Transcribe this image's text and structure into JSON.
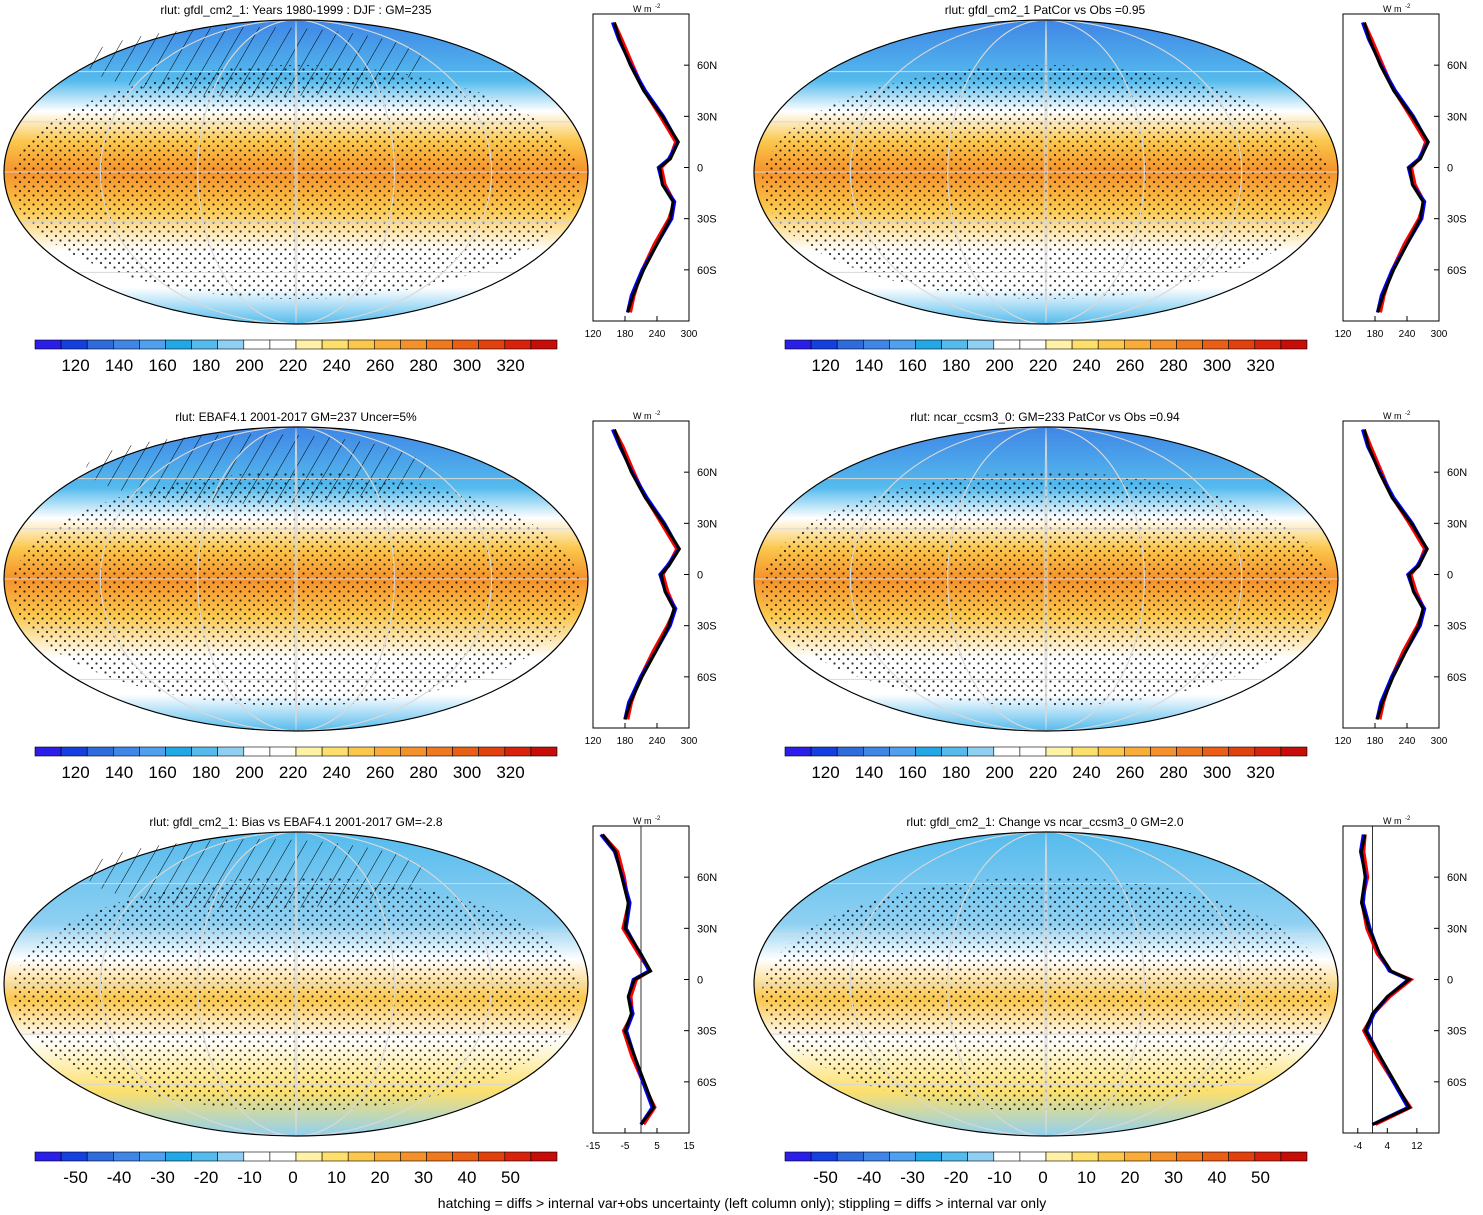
{
  "footer": "hatching = diffs > internal var+obs uncertainty (left column only); stippling = diffs > internal var only",
  "colors": {
    "abs_scale": [
      "#2b1ee8",
      "#1540e0",
      "#2f6bdc",
      "#3f86e6",
      "#4fa0ee",
      "#22a8e6",
      "#55bbed",
      "#8fd0f2",
      "#ffffff",
      "#ffffff",
      "#fff2a8",
      "#fde06c",
      "#fbc74c",
      "#f9ad38",
      "#f5912a",
      "#f0781e",
      "#ea5e16",
      "#e34010",
      "#d8220c",
      "#c80c08"
    ],
    "diff_scale": [
      "#2b1ee8",
      "#1540e0",
      "#2f6bdc",
      "#3f86e6",
      "#4fa0ee",
      "#22a8e6",
      "#55bbed",
      "#8fd0f2",
      "#ffffff",
      "#ffffff",
      "#fff2a8",
      "#fde06c",
      "#fbc74c",
      "#f9ad38",
      "#f5912a",
      "#f0781e",
      "#ea5e16",
      "#e34010",
      "#d8220c",
      "#c80c08"
    ],
    "line_model": "#000000",
    "line_obs_red": "#ff0000",
    "line_obs_blue": "#0000ff"
  },
  "panels": [
    {
      "title": "rlut: gfdl_cm2_1: Years 1980-1999 : DJF : GM=235",
      "kind": "abs",
      "hatch": true
    },
    {
      "title": "rlut: gfdl_cm2_1 PatCor vs Obs =0.95",
      "kind": "abs",
      "hatch": false
    },
    {
      "title": "rlut: EBAF4.1 2001-2017 GM=237 Uncer=5%",
      "kind": "abs",
      "hatch": true
    },
    {
      "title": "rlut: ncar_ccsm3_0: GM=233 PatCor vs Obs =0.94",
      "kind": "abs",
      "hatch": false
    },
    {
      "title": "rlut: gfdl_cm2_1: Bias vs EBAF4.1 2001-2017 GM=-2.8",
      "kind": "diff",
      "hatch": true
    },
    {
      "title": "rlut: gfdl_cm2_1: Change vs ncar_ccsm3_0 GM=2.0",
      "kind": "diff",
      "hatch": false
    }
  ],
  "colorbars": {
    "abs_labels": [
      "120",
      "140",
      "160",
      "180",
      "200",
      "220",
      "240",
      "260",
      "280",
      "300",
      "320"
    ],
    "diff_labels": [
      "-50",
      "-40",
      "-30",
      "-20",
      "-10",
      "0",
      "10",
      "20",
      "30",
      "40",
      "50"
    ]
  },
  "profiles": {
    "unit": "W m",
    "lat_labels": [
      "60N",
      "30N",
      "0",
      "30S",
      "60S"
    ],
    "xticks": [
      [
        "120",
        "180",
        "240",
        "300"
      ],
      [
        "120",
        "180",
        "240",
        "300"
      ],
      [
        "120",
        "180",
        "240",
        "300"
      ],
      [
        "120",
        "180",
        "240",
        "300"
      ],
      [
        "-15",
        "-5",
        "5",
        "15"
      ],
      [
        "-4",
        "4",
        "12"
      ]
    ]
  },
  "chart_data": [
    {
      "type": "line",
      "title": "rlut: gfdl_cm2_1: Years 1980-1999 : DJF : GM=235",
      "x_range": [
        120,
        300
      ],
      "y_range": [
        -90,
        90
      ],
      "series": [
        {
          "y": [
            85,
            75,
            60,
            45,
            30,
            15,
            5,
            0,
            -10,
            -20,
            -30,
            -45,
            -60,
            -75,
            -85
          ],
          "x": [
            160,
            170,
            190,
            215,
            250,
            280,
            265,
            245,
            250,
            270,
            265,
            240,
            215,
            195,
            185
          ]
        }
      ]
    },
    {
      "type": "line",
      "title": "rlut: gfdl_cm2_1 PatCor vs Obs =0.95",
      "x_range": [
        120,
        300
      ],
      "y_range": [
        -90,
        90
      ],
      "series": [
        {
          "y": [
            85,
            75,
            60,
            45,
            30,
            15,
            5,
            0,
            -10,
            -20,
            -30,
            -45,
            -60,
            -75,
            -85
          ],
          "x": [
            160,
            170,
            190,
            215,
            250,
            280,
            265,
            245,
            250,
            270,
            265,
            240,
            215,
            195,
            185
          ]
        }
      ]
    },
    {
      "type": "line",
      "title": "rlut: EBAF4.1 2001-2017 GM=237 Uncer=5%",
      "x_range": [
        120,
        300
      ],
      "y_range": [
        -90,
        90
      ],
      "series": [
        {
          "y": [
            85,
            75,
            60,
            45,
            30,
            15,
            5,
            0,
            -10,
            -20,
            -30,
            -45,
            -60,
            -75,
            -85
          ],
          "x": [
            160,
            172,
            192,
            218,
            252,
            282,
            262,
            248,
            255,
            272,
            262,
            238,
            212,
            190,
            180
          ]
        }
      ]
    },
    {
      "type": "line",
      "title": "rlut: ncar_ccsm3_0: GM=233 PatCor vs Obs =0.94",
      "x_range": [
        120,
        300
      ],
      "y_range": [
        -90,
        90
      ],
      "series": [
        {
          "y": [
            85,
            75,
            60,
            45,
            30,
            15,
            5,
            0,
            -10,
            -20,
            -30,
            -45,
            -60,
            -75,
            -85
          ],
          "x": [
            160,
            168,
            188,
            212,
            248,
            278,
            262,
            244,
            252,
            270,
            262,
            238,
            214,
            194,
            184
          ]
        }
      ]
    },
    {
      "type": "line",
      "title": "rlut: gfdl_cm2_1: Bias vs EBAF4.1 2001-2017 GM=-2.8",
      "x_range": [
        -15,
        15
      ],
      "y_range": [
        -90,
        90
      ],
      "series": [
        {
          "y": [
            85,
            75,
            60,
            45,
            30,
            15,
            5,
            0,
            -10,
            -20,
            -30,
            -45,
            -60,
            -75,
            -85
          ],
          "x": [
            -12,
            -8,
            -6,
            -4,
            -5,
            0,
            3,
            -2,
            -4,
            -3,
            -5,
            -2,
            1,
            4,
            0
          ]
        }
      ]
    },
    {
      "type": "line",
      "title": "rlut: gfdl_cm2_1: Change vs ncar_ccsm3_0 GM=2.0",
      "x_range": [
        -8,
        18
      ],
      "y_range": [
        -90,
        90
      ],
      "series": [
        {
          "y": [
            85,
            75,
            60,
            45,
            30,
            15,
            5,
            0,
            -10,
            -20,
            -30,
            -45,
            -60,
            -75,
            -85
          ],
          "x": [
            -2,
            -3,
            -2,
            -3,
            -1,
            2,
            5,
            10,
            4,
            0,
            -2,
            2,
            6,
            10,
            0
          ]
        }
      ]
    }
  ]
}
